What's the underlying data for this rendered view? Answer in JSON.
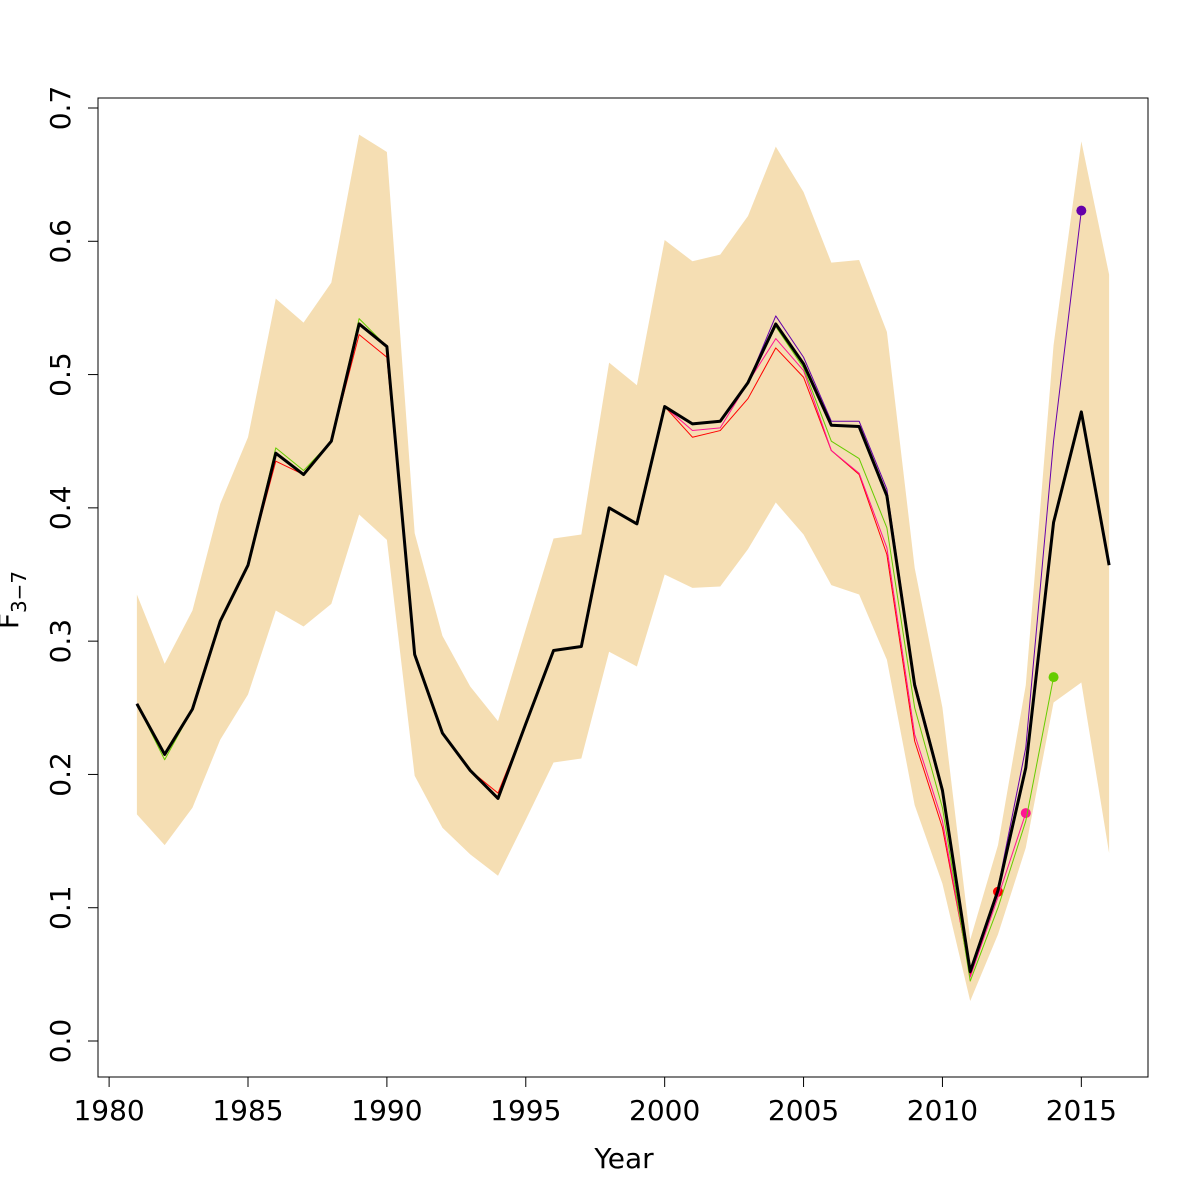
{
  "chart_data": {
    "type": "line",
    "xlabel": "Year",
    "ylabel": "F",
    "ylabel_subscript": "3−7",
    "x": [
      1981,
      1982,
      1983,
      1984,
      1985,
      1986,
      1987,
      1988,
      1989,
      1990,
      1991,
      1992,
      1993,
      1994,
      1995,
      1996,
      1997,
      1998,
      1999,
      2000,
      2001,
      2002,
      2003,
      2004,
      2005,
      2006,
      2007,
      2008,
      2009,
      2010,
      2011,
      2012,
      2013,
      2014,
      2015,
      2016
    ],
    "band": {
      "color": "#f5deb3",
      "upper": [
        0.335,
        0.283,
        0.323,
        0.403,
        0.453,
        0.557,
        0.539,
        0.569,
        0.68,
        0.667,
        0.381,
        0.304,
        0.266,
        0.24,
        0.309,
        0.377,
        0.38,
        0.509,
        0.492,
        0.601,
        0.585,
        0.59,
        0.619,
        0.671,
        0.637,
        0.584,
        0.586,
        0.532,
        0.355,
        0.25,
        0.076,
        0.147,
        0.267,
        0.522,
        0.675,
        0.575
      ],
      "lower": [
        0.17,
        0.147,
        0.175,
        0.226,
        0.26,
        0.323,
        0.311,
        0.328,
        0.395,
        0.376,
        0.199,
        0.16,
        0.14,
        0.124,
        0.166,
        0.209,
        0.212,
        0.292,
        0.281,
        0.35,
        0.34,
        0.341,
        0.369,
        0.404,
        0.38,
        0.342,
        0.335,
        0.286,
        0.177,
        0.118,
        0.03,
        0.08,
        0.145,
        0.254,
        0.269,
        0.141
      ]
    },
    "series": [
      {
        "color": "#ff0000",
        "width": 1,
        "endpoint": true,
        "values": [
          0.253,
          0.215,
          0.249,
          0.315,
          0.357,
          0.435,
          0.425,
          0.45,
          0.53,
          0.513,
          0.29,
          0.231,
          0.203,
          0.186,
          0.238,
          0.293,
          0.296,
          0.4,
          0.388,
          0.476,
          0.453,
          0.458,
          0.482,
          0.52,
          0.498,
          0.443,
          0.425,
          0.365,
          0.225,
          0.16,
          0.05,
          0.112,
          null,
          null,
          null,
          null
        ]
      },
      {
        "color": "#ff1493",
        "width": 1,
        "endpoint": true,
        "values": [
          0.253,
          0.215,
          0.249,
          0.315,
          0.357,
          0.441,
          0.425,
          0.45,
          0.538,
          0.521,
          0.29,
          0.231,
          0.203,
          0.182,
          0.238,
          0.293,
          0.296,
          0.4,
          0.388,
          0.476,
          0.458,
          0.46,
          0.494,
          0.527,
          0.503,
          0.443,
          0.426,
          0.37,
          0.23,
          0.165,
          0.048,
          0.108,
          0.171,
          null,
          null,
          null
        ]
      },
      {
        "color": "#66cc00",
        "width": 1,
        "endpoint": true,
        "values": [
          0.253,
          0.211,
          0.249,
          0.315,
          0.357,
          0.445,
          0.428,
          0.45,
          0.542,
          0.521,
          0.29,
          0.231,
          0.203,
          0.182,
          0.238,
          0.293,
          0.296,
          0.4,
          0.388,
          0.476,
          0.463,
          0.465,
          0.494,
          0.536,
          0.505,
          0.45,
          0.437,
          0.385,
          0.25,
          0.175,
          0.045,
          0.1,
          0.165,
          0.273,
          null,
          null
        ]
      },
      {
        "color": "#6600aa",
        "width": 1,
        "endpoint": true,
        "values": [
          0.253,
          0.215,
          0.249,
          0.315,
          0.357,
          0.441,
          0.425,
          0.45,
          0.538,
          0.521,
          0.29,
          0.231,
          0.203,
          0.182,
          0.238,
          0.293,
          0.296,
          0.4,
          0.388,
          0.476,
          0.463,
          0.465,
          0.494,
          0.544,
          0.513,
          0.465,
          0.465,
          0.414,
          0.27,
          0.19,
          0.052,
          0.115,
          0.22,
          0.45,
          0.623,
          null
        ]
      },
      {
        "color": "#000000",
        "width": 3,
        "endpoint": false,
        "values": [
          0.253,
          0.215,
          0.249,
          0.315,
          0.357,
          0.441,
          0.425,
          0.45,
          0.538,
          0.521,
          0.29,
          0.231,
          0.203,
          0.182,
          0.238,
          0.293,
          0.296,
          0.4,
          0.388,
          0.476,
          0.463,
          0.465,
          0.494,
          0.538,
          0.508,
          0.462,
          0.461,
          0.409,
          0.267,
          0.188,
          0.052,
          0.113,
          0.205,
          0.389,
          0.472,
          0.357
        ]
      }
    ],
    "xlim": [
      1979.6,
      2017.4
    ],
    "ylim": [
      -0.027,
      0.7075
    ],
    "xticks": [
      1980,
      1985,
      1990,
      1995,
      2000,
      2005,
      2010,
      2015
    ],
    "yticks": [
      {
        "value": 0,
        "label": "0.0"
      },
      0.1,
      0.2,
      0.3,
      0.4,
      0.5,
      0.6,
      0.7
    ]
  }
}
